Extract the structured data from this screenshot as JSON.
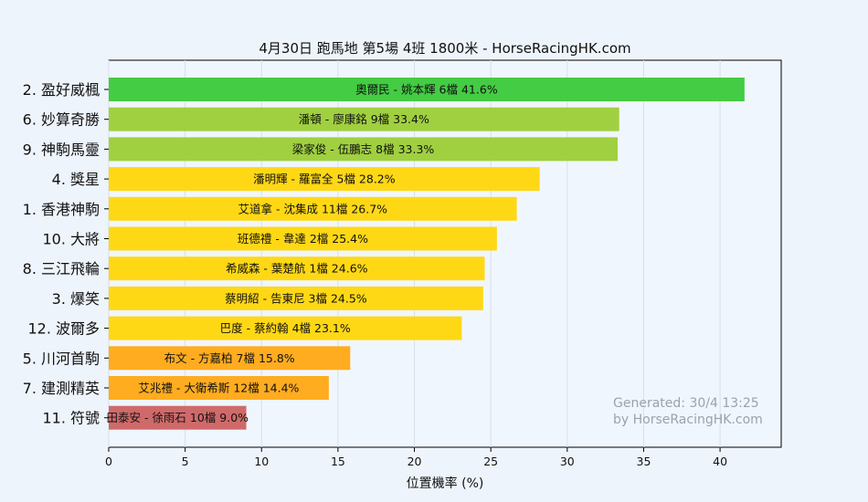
{
  "chart_data": {
    "type": "bar",
    "orientation": "horizontal",
    "title": "4月30日  跑馬地  第5場  4班  1800米 - HorseRacingHK.com",
    "xlabel": "位置機率 (%)",
    "ylabel": "",
    "xlim": [
      0,
      44
    ],
    "xticks": [
      0,
      5,
      10,
      15,
      20,
      25,
      30,
      35,
      40
    ],
    "grid": true,
    "categories": [
      "2. 盈好威楓",
      "6. 妙算奇勝",
      "9. 神駒馬靈",
      "4. 獎星",
      "1. 香港神駒",
      "10. 大將",
      "8. 三江飛輪",
      "3. 爆笑",
      "12. 波爾多",
      "5. 川河首駒",
      "7. 建測精英",
      "11. 符號"
    ],
    "values": [
      41.6,
      33.4,
      33.3,
      28.2,
      26.7,
      25.4,
      24.6,
      24.5,
      23.1,
      15.8,
      14.4,
      9.0
    ],
    "bar_labels": [
      "奧爾民 - 姚本輝 6檔  41.6%",
      "潘頓 - 廖康銘 9檔  33.4%",
      "梁家俊 - 伍鵬志 8檔  33.3%",
      "潘明輝 - 羅富全 5檔  28.2%",
      "艾道拿 - 沈集成 11檔  26.7%",
      "班德禮 - 韋達 2檔  25.4%",
      "希威森 - 葉楚航 1檔  24.6%",
      "蔡明紹 - 告東尼 3檔  24.5%",
      "巴度 - 蔡約翰 4檔  23.1%",
      "布文 - 方嘉柏 7檔  15.8%",
      "艾兆禮 - 大衛希斯 12檔  14.4%",
      "田泰安 - 徐雨石 10檔  9.0%"
    ],
    "colors": [
      "#44cc44",
      "#a0d040",
      "#a0d040",
      "#ffd815",
      "#ffd815",
      "#ffd815",
      "#ffd815",
      "#ffd815",
      "#ffd815",
      "#ffac20",
      "#ffac20",
      "#d06a6a"
    ],
    "annotations": [
      "Generated: 30/4 13:25",
      "by HorseRacingHK.com"
    ]
  }
}
